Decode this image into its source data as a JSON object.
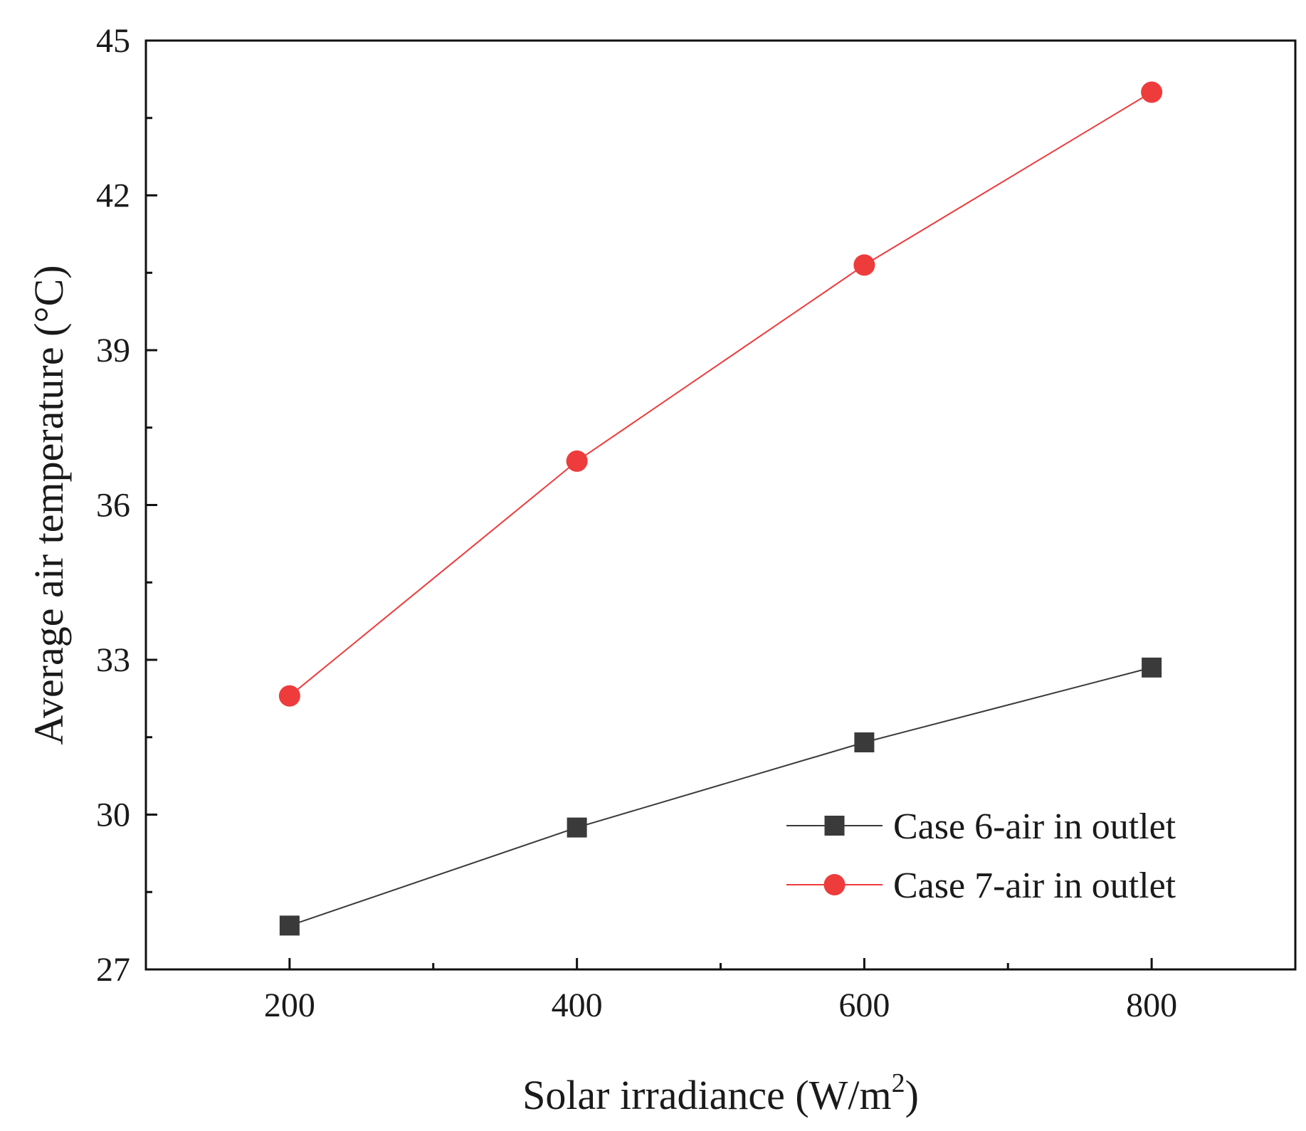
{
  "chart_data": {
    "type": "line",
    "title": "",
    "xlabel": "Solar irradiance (W/m",
    "xlabel_superscript": "2",
    "xlabel_suffix": ")",
    "ylabel": "Average air temperature (°C)",
    "xlim": [
      100,
      900
    ],
    "ylim": [
      27,
      45
    ],
    "x_ticks": [
      200,
      400,
      600,
      800
    ],
    "x_minor_ticks": [
      300,
      500,
      700
    ],
    "y_ticks": [
      27,
      30,
      33,
      36,
      39,
      42,
      45
    ],
    "y_minor_ticks": [
      28.5,
      31.5,
      34.5,
      37.5,
      40.5,
      43.5
    ],
    "grid": false,
    "legend_position": "bottom-right",
    "x": [
      200,
      400,
      600,
      800
    ],
    "series": [
      {
        "name": "Case 6-air in outlet",
        "marker": "square",
        "color": "#3a3a3a",
        "values": [
          27.85,
          29.75,
          31.4,
          32.85
        ]
      },
      {
        "name": "Case 7-air in outlet",
        "marker": "circle",
        "color": "#ee3b3b",
        "values": [
          32.3,
          36.85,
          40.65,
          44.0
        ]
      }
    ]
  }
}
